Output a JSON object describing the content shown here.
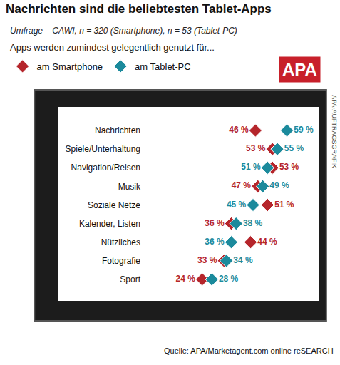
{
  "chart_data": {
    "type": "scatter",
    "orientation": "horizontal",
    "title": "Nachrichten sind die beliebtesten Tablet-Apps",
    "subtitle": "Umfrage – CAWI, n = 320 (Smartphone), n = 53 (Tablet-PC)",
    "annotations": [
      "Apps werden zumindest gelegentlich genutzt für...",
      "APA",
      "APA-AUFTRAGSGRAFIK",
      "Quelle: APA/Marketagent.com online reSEARCH"
    ],
    "categories": [
      "Nachrichten",
      "Spiele/Unterhaltung",
      "Navigation/Reisen",
      "Musik",
      "Soziale Netze",
      "Kalender, Listen",
      "Nützliches",
      "Fotografie",
      "Sport"
    ],
    "series": [
      {
        "name": "am Smartphone",
        "color": "#b5252b",
        "marker": "diamond",
        "values": [
          46,
          53,
          53,
          47,
          51,
          36,
          44,
          33,
          24
        ],
        "value_labels": [
          "46 %",
          "53 %",
          "53 %",
          "47 %",
          "51 %",
          "36 %",
          "44 %",
          "33 %",
          "24 %"
        ]
      },
      {
        "name": "am Tablet-PC",
        "color": "#1b8a9c",
        "marker": "diamond",
        "values": [
          59,
          55,
          51,
          49,
          45,
          38,
          36,
          34,
          28
        ],
        "value_labels": [
          "59 %",
          "55 %",
          "51 %",
          "49 %",
          "45 %",
          "38 %",
          "36 %",
          "34 %",
          "28 %"
        ]
      }
    ],
    "xlim": [
      0,
      70
    ],
    "data_labels": true,
    "tick_labels": "y",
    "legend": "top left"
  }
}
